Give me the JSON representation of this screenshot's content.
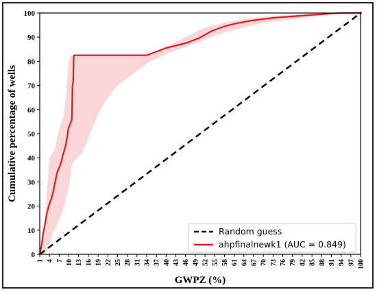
{
  "chart_data": {
    "type": "line",
    "xlabel": "GWPZ (%)",
    "ylabel": "Cumulative percentage of wells",
    "xlim": [
      1,
      100
    ],
    "ylim": [
      0,
      100
    ],
    "x_ticks": [
      "1",
      "4",
      "7",
      "10",
      "13",
      "16",
      "19",
      "22",
      "25",
      "28",
      "31",
      "34",
      "37",
      "40",
      "43",
      "46",
      "49",
      "52",
      "55",
      "58",
      "61",
      "64",
      "67",
      "70",
      "73",
      "76",
      "79",
      "82",
      "85",
      "88",
      "91",
      "94",
      "97",
      "100"
    ],
    "y_ticks": [
      0,
      10,
      20,
      30,
      40,
      50,
      60,
      70,
      80,
      90,
      100
    ],
    "legend_position": "lower-right",
    "colors": {
      "model": "#e31a1c",
      "band": "#f7c5c8",
      "random": "#000000"
    },
    "series": [
      {
        "name": "Random guess",
        "style": "dashed",
        "x": [
          1,
          100
        ],
        "y": [
          0,
          100
        ]
      },
      {
        "name": "ahpfinalnewk1 (AUC = 0.849)",
        "style": "solid",
        "x": [
          1,
          1.6,
          2.1,
          2.7,
          3.2,
          3.8,
          4.3,
          4.8,
          5.3,
          5.9,
          6.4,
          7,
          7.6,
          8.1,
          8.6,
          9,
          9.4,
          9.6,
          9.8,
          10.1,
          10.4,
          10.7,
          10.9,
          11,
          11.1,
          11.3,
          11.5,
          11.6,
          12,
          20,
          30,
          34,
          36,
          38,
          40,
          43,
          46,
          48,
          50,
          52,
          54,
          56,
          58,
          61,
          64,
          67,
          70,
          73,
          76,
          79,
          82,
          85,
          88,
          91,
          94,
          97,
          100
        ],
        "y": [
          0,
          4,
          9,
          13,
          17,
          20,
          22,
          24,
          27,
          31,
          34,
          36,
          38,
          41,
          43,
          45,
          48,
          50,
          52,
          53,
          54,
          55,
          56,
          62,
          70,
          71,
          82,
          82.5,
          82.5,
          82.5,
          82.5,
          82.5,
          83.5,
          84.5,
          85.5,
          86.5,
          87.5,
          88.5,
          89.5,
          91,
          92.5,
          93.5,
          94.5,
          95.5,
          96.3,
          97,
          97.5,
          98,
          98.3,
          98.6,
          98.9,
          99.2,
          99.5,
          99.8,
          100,
          100,
          100
        ]
      }
    ],
    "confidence_band": {
      "x": [
        1,
        2.5,
        4,
        5.5,
        7,
        8.5,
        10,
        10.5,
        11,
        14,
        16,
        19,
        22,
        25,
        28,
        31,
        34,
        40,
        46,
        52,
        58,
        64,
        70,
        76,
        82,
        88,
        94,
        100
      ],
      "lower": [
        0,
        0,
        5,
        10,
        14,
        20,
        28,
        33,
        38,
        42,
        48,
        58,
        65,
        70,
        73,
        76,
        79,
        83,
        86,
        89,
        92,
        94,
        96,
        97,
        98,
        99,
        100,
        100
      ],
      "upper": [
        0,
        13,
        40,
        43,
        52,
        58,
        80,
        82.5,
        82.5,
        82.5,
        82.5,
        82.5,
        82.5,
        82.5,
        82.5,
        82.5,
        82.5,
        86,
        90,
        94,
        96,
        97.5,
        98.5,
        99,
        99.5,
        100,
        100,
        100
      ]
    }
  }
}
